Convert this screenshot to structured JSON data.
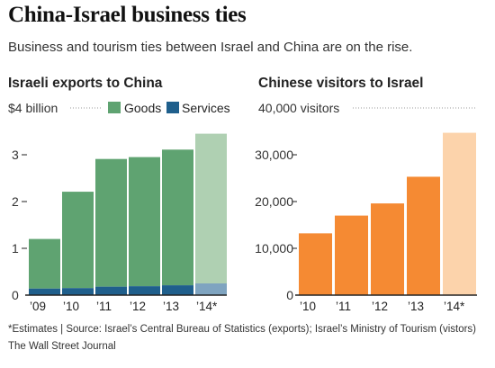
{
  "title": "China-Israel business ties",
  "subtitle": "Business and tourism ties between Israel and China are on the rise.",
  "footnote": "*Estimates | Source: Israel’s Central Bureau of Statistics (exports);  Israel’s Ministry of Tourism (vistors)",
  "source": "The Wall Street Journal",
  "colors": {
    "goods": "#5fa371",
    "goods_estimate": "#afd0b2",
    "services": "#1f5f8c",
    "services_estimate": "#7fa4c0",
    "visitors": "#f58a33",
    "visitors_estimate": "#fcd3ab",
    "axis": "#222222",
    "grid": "#999999"
  },
  "chart_data": [
    {
      "type": "bar",
      "stacked": true,
      "title": "Israeli exports to China",
      "unit_label": "$4 billion",
      "categories": [
        "’09",
        "’10",
        "’11",
        "’12",
        "’13",
        "’14*"
      ],
      "estimate_index": 5,
      "series": [
        {
          "name": "Services",
          "values": [
            0.14,
            0.15,
            0.18,
            0.19,
            0.21,
            0.25
          ]
        },
        {
          "name": "Goods",
          "values": [
            1.06,
            2.06,
            2.73,
            2.76,
            2.9,
            3.2
          ]
        }
      ],
      "ylim": [
        0,
        4
      ],
      "yticks": [
        0,
        1,
        2,
        3
      ],
      "grid": false,
      "legend": "top-right"
    },
    {
      "type": "bar",
      "title": "Chinese visitors to Israel",
      "unit_label": "40,000 visitors",
      "categories": [
        "’10",
        "’11",
        "’12",
        "’13",
        "’14*"
      ],
      "estimate_index": 4,
      "values": [
        13200,
        17000,
        19600,
        25300,
        34700
      ],
      "ylim": [
        0,
        40000
      ],
      "yticks": [
        0,
        10000,
        20000,
        30000
      ],
      "ytick_labels": [
        "0",
        "10,000",
        "20,000",
        "30,000"
      ],
      "grid": false
    }
  ]
}
